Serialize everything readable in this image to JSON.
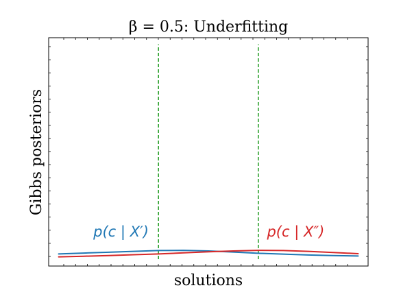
{
  "chart_data": {
    "type": "line",
    "title": "β = 0.5: Underfitting",
    "xlabel": "solutions",
    "ylabel": "Gibbs posteriors",
    "xlim": [
      -3.2,
      3.2
    ],
    "ylim": [
      0,
      1
    ],
    "grid": false,
    "legend": "none",
    "series": [
      {
        "name": "p(c | X′)",
        "color": "#1f77b4",
        "x": [
          -3.0,
          -2.5,
          -2.0,
          -1.5,
          -1.0,
          -0.5,
          0.0,
          0.5,
          1.0,
          1.5,
          2.0,
          2.5,
          3.0
        ],
        "y": [
          0.012,
          0.016,
          0.02,
          0.024,
          0.028,
          0.029,
          0.026,
          0.021,
          0.015,
          0.011,
          0.007,
          0.004,
          0.002
        ]
      },
      {
        "name": "p(c | X″)",
        "color": "#d62728",
        "x": [
          -3.0,
          -2.5,
          -2.0,
          -1.5,
          -1.0,
          -0.5,
          0.0,
          0.5,
          1.0,
          1.5,
          2.0,
          2.5,
          3.0
        ],
        "y": [
          -0.002,
          0.001,
          0.004,
          0.008,
          0.012,
          0.017,
          0.022,
          0.026,
          0.029,
          0.028,
          0.024,
          0.019,
          0.013
        ]
      }
    ],
    "vlines": [
      {
        "x": -1.0,
        "color": "#2ca02c",
        "style": "dashed",
        "ymax": 0.88
      },
      {
        "x": 1.0,
        "color": "#2ca02c",
        "style": "dashed",
        "ymax": 0.88
      }
    ],
    "annotations": [
      {
        "text": "p(c | X′)",
        "color": "#1f77b4",
        "x": -1.75,
        "y": 0.075
      },
      {
        "text": "p(c | X″)",
        "color": "#d62728",
        "x": 1.75,
        "y": 0.075
      }
    ]
  }
}
